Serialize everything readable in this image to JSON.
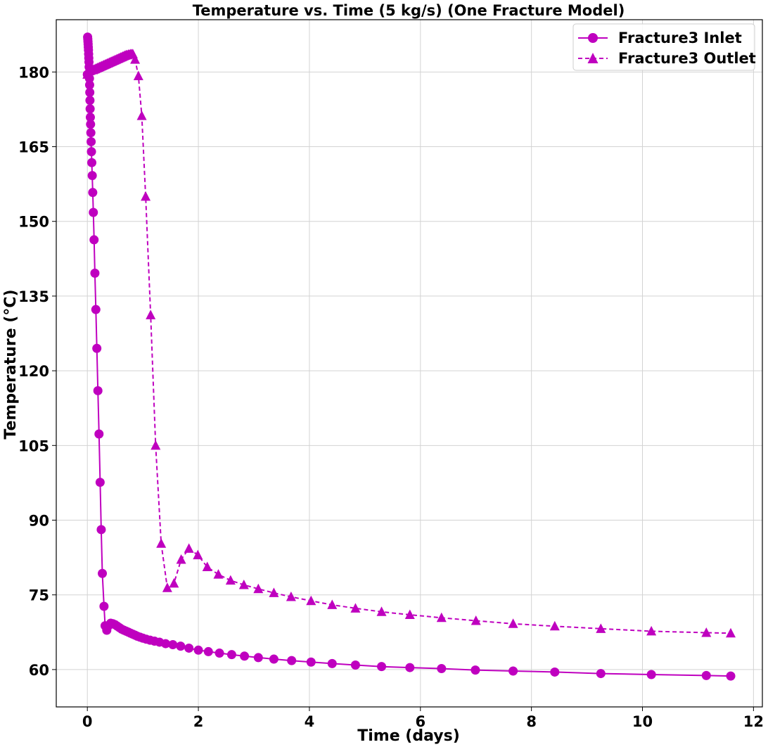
{
  "chart_data": {
    "type": "line",
    "title": "Temperature vs. Time (5 kg/s) (One Fracture Model)",
    "xlabel": "Time (days)",
    "ylabel": "Temperature (°C)",
    "xlim": [
      -0.56,
      12.16
    ],
    "ylim": [
      52.5,
      190.5
    ],
    "xticks": [
      0,
      2,
      4,
      6,
      8,
      10,
      12
    ],
    "xtick_labels": [
      "0",
      "2",
      "4",
      "6",
      "8",
      "10",
      "12"
    ],
    "yticks": [
      60,
      75,
      90,
      105,
      120,
      135,
      150,
      165,
      180
    ],
    "ytick_labels": [
      "60",
      "75",
      "90",
      "105",
      "120",
      "135",
      "150",
      "165",
      "180"
    ],
    "grid": true,
    "legend_position": "top-right",
    "series": [
      {
        "name": "Fracture3 Inlet",
        "color": "#bf00bf",
        "line_style": "solid",
        "marker": "circle",
        "x": [
          0.0,
          0.005,
          0.008,
          0.011,
          0.014,
          0.017,
          0.02,
          0.023,
          0.026,
          0.029,
          0.032,
          0.035,
          0.038,
          0.041,
          0.044,
          0.047,
          0.05,
          0.054,
          0.058,
          0.063,
          0.068,
          0.074,
          0.08,
          0.088,
          0.097,
          0.108,
          0.121,
          0.136,
          0.153,
          0.171,
          0.19,
          0.21,
          0.23,
          0.25,
          0.27,
          0.3,
          0.32,
          0.35,
          0.38,
          0.42,
          0.46,
          0.5,
          0.54,
          0.58,
          0.62,
          0.66,
          0.7,
          0.74,
          0.78,
          0.82,
          0.86,
          0.9,
          0.95,
          1.0,
          1.06,
          1.13,
          1.21,
          1.3,
          1.41,
          1.54,
          1.68,
          1.83,
          2.0,
          2.18,
          2.38,
          2.6,
          2.83,
          3.08,
          3.36,
          3.68,
          4.03,
          4.41,
          4.83,
          5.3,
          5.81,
          6.38,
          6.99,
          7.67,
          8.42,
          9.25,
          10.16,
          11.15,
          11.59
        ],
        "values": [
          179.5,
          187.0,
          186.6,
          186.1,
          185.6,
          185.0,
          184.4,
          183.6,
          182.8,
          182.0,
          181.0,
          179.9,
          178.7,
          177.4,
          175.9,
          174.3,
          172.6,
          170.9,
          169.5,
          167.8,
          166.0,
          164.0,
          161.8,
          159.2,
          155.8,
          151.8,
          146.3,
          139.6,
          132.3,
          124.5,
          116.0,
          107.3,
          97.6,
          88.1,
          79.3,
          72.7,
          68.8,
          67.9,
          68.8,
          69.3,
          69.2,
          69.0,
          68.7,
          68.4,
          68.1,
          67.9,
          67.7,
          67.5,
          67.3,
          67.1,
          66.9,
          66.7,
          66.5,
          66.3,
          66.1,
          65.9,
          65.7,
          65.5,
          65.2,
          65.0,
          64.7,
          64.3,
          63.9,
          63.6,
          63.3,
          63.0,
          62.7,
          62.4,
          62.1,
          61.8,
          61.5,
          61.2,
          60.9,
          60.6,
          60.4,
          60.2,
          59.9,
          59.7,
          59.5,
          59.2,
          59.0,
          58.8,
          58.7
        ]
      },
      {
        "name": "Fracture3 Outlet",
        "color": "#bf00bf",
        "line_style": "dashed",
        "marker": "triangle",
        "x": [
          0.0,
          0.02,
          0.04,
          0.06,
          0.08,
          0.1,
          0.12,
          0.14,
          0.16,
          0.18,
          0.2,
          0.22,
          0.24,
          0.26,
          0.28,
          0.3,
          0.32,
          0.34,
          0.36,
          0.38,
          0.4,
          0.42,
          0.44,
          0.46,
          0.48,
          0.5,
          0.52,
          0.54,
          0.56,
          0.58,
          0.6,
          0.62,
          0.64,
          0.66,
          0.68,
          0.7,
          0.72,
          0.74,
          0.76,
          0.78,
          0.8,
          0.82,
          0.86,
          0.92,
          0.98,
          1.05,
          1.14,
          1.23,
          1.33,
          1.44,
          1.56,
          1.69,
          1.83,
          1.99,
          2.16,
          2.36,
          2.58,
          2.82,
          3.08,
          3.36,
          3.67,
          4.03,
          4.41,
          4.83,
          5.3,
          5.81,
          6.38,
          7.0,
          7.67,
          8.42,
          9.25,
          10.16,
          11.15,
          11.59
        ],
        "values": [
          179.5,
          180.0,
          180.2,
          180.3,
          180.4,
          180.4,
          180.5,
          180.6,
          180.7,
          180.8,
          180.9,
          181.0,
          181.1,
          181.2,
          181.3,
          181.4,
          181.5,
          181.6,
          181.7,
          181.8,
          181.9,
          182.0,
          182.1,
          182.2,
          182.3,
          182.4,
          182.5,
          182.6,
          182.7,
          182.8,
          182.9,
          183.0,
          183.1,
          183.2,
          183.3,
          183.4,
          183.4,
          183.5,
          183.5,
          183.6,
          183.6,
          183.6,
          182.5,
          179.2,
          171.2,
          155.0,
          131.2,
          105.0,
          85.3,
          76.4,
          77.3,
          82.1,
          84.3,
          83.0,
          80.6,
          79.1,
          77.9,
          77.0,
          76.2,
          75.4,
          74.6,
          73.8,
          73.0,
          72.3,
          71.6,
          71.0,
          70.4,
          69.8,
          69.2,
          68.7,
          68.2,
          67.7,
          67.4,
          67.3
        ]
      }
    ]
  }
}
